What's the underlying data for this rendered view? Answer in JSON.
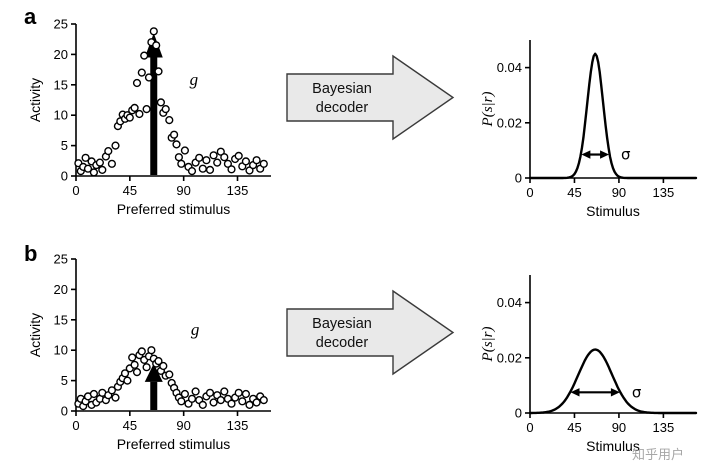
{
  "panel_labels": [
    "a",
    "b"
  ],
  "decoder": {
    "line1": "Bayesian",
    "line2": "decoder"
  },
  "watermark": "知乎用户",
  "colors": {
    "stroke": "#000000",
    "decoder_fill": "#e9e9e9",
    "decoder_stroke": "#3a3a3a",
    "watermark": "#a6a6a6"
  },
  "chart_data": [
    {
      "id": "tuning-a",
      "type": "scatter",
      "title": "",
      "xlabel": "Preferred stimulus",
      "ylabel": "Activity",
      "xlim": [
        0,
        163
      ],
      "ylim": [
        0,
        25
      ],
      "xticks": [
        0,
        45,
        90,
        135
      ],
      "yticks": [
        0,
        5,
        10,
        15,
        20,
        25
      ],
      "points": [
        [
          2,
          2.1
        ],
        [
          4,
          0.8
        ],
        [
          6,
          1.5
        ],
        [
          8,
          3.0
        ],
        [
          10,
          1.2
        ],
        [
          13,
          2.4
        ],
        [
          15,
          0.6
        ],
        [
          17,
          1.8
        ],
        [
          20,
          2.2
        ],
        [
          22,
          1.0
        ],
        [
          25,
          3.2
        ],
        [
          27,
          4.1
        ],
        [
          30,
          2.0
        ],
        [
          33,
          5.0
        ],
        [
          35,
          8.2
        ],
        [
          37,
          9.0
        ],
        [
          39,
          10.1
        ],
        [
          41,
          9.4
        ],
        [
          43,
          10.0
        ],
        [
          45,
          9.6
        ],
        [
          47,
          10.8
        ],
        [
          49,
          11.2
        ],
        [
          51,
          15.3
        ],
        [
          53,
          10.2
        ],
        [
          55,
          17.0
        ],
        [
          57,
          19.8
        ],
        [
          59,
          11.0
        ],
        [
          61,
          16.2
        ],
        [
          63,
          22.0
        ],
        [
          65,
          23.8
        ],
        [
          67,
          21.5
        ],
        [
          69,
          17.2
        ],
        [
          71,
          12.1
        ],
        [
          73,
          10.4
        ],
        [
          75,
          11.0
        ],
        [
          78,
          9.2
        ],
        [
          80,
          6.3
        ],
        [
          82,
          6.8
        ],
        [
          84,
          5.2
        ],
        [
          86,
          3.1
        ],
        [
          88,
          2.0
        ],
        [
          91,
          4.2
        ],
        [
          94,
          1.5
        ],
        [
          97,
          0.8
        ],
        [
          100,
          2.2
        ],
        [
          103,
          3.0
        ],
        [
          106,
          1.2
        ],
        [
          109,
          2.6
        ],
        [
          112,
          1.0
        ],
        [
          115,
          3.4
        ],
        [
          118,
          2.2
        ],
        [
          121,
          4.0
        ],
        [
          124,
          3.1
        ],
        [
          127,
          2.0
        ],
        [
          130,
          1.1
        ],
        [
          133,
          2.8
        ],
        [
          136,
          3.3
        ],
        [
          139,
          1.6
        ],
        [
          142,
          2.4
        ],
        [
          145,
          0.9
        ],
        [
          148,
          1.8
        ],
        [
          151,
          2.6
        ],
        [
          154,
          1.2
        ],
        [
          157,
          2.0
        ]
      ],
      "gain_arrow": {
        "x": 65,
        "shaft_top": 19.5,
        "tip": 23.5,
        "label": "g",
        "label_x": 95,
        "label_y": 15
      }
    },
    {
      "id": "posterior-a",
      "type": "line",
      "title": "",
      "xlabel": "Stimulus",
      "ylabel": "P(s|r)",
      "ylabel_italic": true,
      "xlim": [
        0,
        168
      ],
      "ylim": [
        0,
        0.05
      ],
      "xticks": [
        0,
        45,
        90,
        135
      ],
      "yticks": [
        0,
        0.02,
        0.04
      ],
      "ytick_labels": [
        "0",
        "0.02",
        "0.04"
      ],
      "gaussian": {
        "center": 66,
        "sigma": 8,
        "peak": 0.045
      },
      "sigma_arrow": {
        "x1": 52,
        "x2": 80,
        "y": 0.0085,
        "label": "σ"
      }
    },
    {
      "id": "tuning-b",
      "type": "scatter",
      "title": "",
      "xlabel": "Preferred stimulus",
      "ylabel": "Activity",
      "xlim": [
        0,
        163
      ],
      "ylim": [
        0,
        25
      ],
      "xticks": [
        0,
        45,
        90,
        135
      ],
      "yticks": [
        0,
        5,
        10,
        15,
        20,
        25
      ],
      "points": [
        [
          2,
          1.2
        ],
        [
          4,
          2.0
        ],
        [
          6,
          0.8
        ],
        [
          8,
          1.6
        ],
        [
          10,
          2.4
        ],
        [
          13,
          1.0
        ],
        [
          15,
          2.8
        ],
        [
          17,
          1.4
        ],
        [
          20,
          2.0
        ],
        [
          22,
          3.0
        ],
        [
          25,
          1.8
        ],
        [
          27,
          2.6
        ],
        [
          30,
          3.4
        ],
        [
          33,
          2.2
        ],
        [
          35,
          4.0
        ],
        [
          37,
          4.8
        ],
        [
          39,
          5.4
        ],
        [
          41,
          6.2
        ],
        [
          43,
          5.0
        ],
        [
          45,
          7.0
        ],
        [
          47,
          8.8
        ],
        [
          49,
          7.6
        ],
        [
          51,
          6.4
        ],
        [
          53,
          9.2
        ],
        [
          55,
          9.8
        ],
        [
          57,
          8.4
        ],
        [
          59,
          7.2
        ],
        [
          61,
          9.0
        ],
        [
          63,
          10.0
        ],
        [
          65,
          8.6
        ],
        [
          67,
          7.8
        ],
        [
          69,
          8.2
        ],
        [
          71,
          6.6
        ],
        [
          73,
          7.4
        ],
        [
          75,
          5.8
        ],
        [
          78,
          6.0
        ],
        [
          80,
          4.6
        ],
        [
          82,
          3.8
        ],
        [
          84,
          3.0
        ],
        [
          86,
          2.2
        ],
        [
          88,
          1.6
        ],
        [
          91,
          2.8
        ],
        [
          94,
          1.2
        ],
        [
          97,
          2.0
        ],
        [
          100,
          3.2
        ],
        [
          103,
          1.8
        ],
        [
          106,
          1.0
        ],
        [
          109,
          2.4
        ],
        [
          112,
          3.0
        ],
        [
          115,
          1.4
        ],
        [
          118,
          2.6
        ],
        [
          121,
          1.8
        ],
        [
          124,
          3.2
        ],
        [
          127,
          2.0
        ],
        [
          130,
          1.2
        ],
        [
          133,
          2.2
        ],
        [
          136,
          3.0
        ],
        [
          139,
          1.6
        ],
        [
          142,
          2.8
        ],
        [
          145,
          1.0
        ],
        [
          148,
          2.0
        ],
        [
          151,
          1.4
        ],
        [
          154,
          2.4
        ],
        [
          157,
          1.8
        ]
      ],
      "gain_arrow": {
        "x": 65,
        "shaft_top": 4.8,
        "tip": 7.8,
        "label": "g",
        "label_x": 96,
        "label_y": 12.5
      }
    },
    {
      "id": "posterior-b",
      "type": "line",
      "title": "",
      "xlabel": "Stimulus",
      "ylabel": "P(s|r)",
      "ylabel_italic": true,
      "xlim": [
        0,
        168
      ],
      "ylim": [
        0,
        0.05
      ],
      "xticks": [
        0,
        45,
        90,
        135
      ],
      "yticks": [
        0,
        0.02,
        0.04
      ],
      "ytick_labels": [
        "0",
        "0.02",
        "0.04"
      ],
      "gaussian": {
        "center": 66,
        "sigma": 17,
        "peak": 0.023
      },
      "sigma_arrow": {
        "x1": 41,
        "x2": 91,
        "y": 0.0075,
        "label": "σ"
      }
    }
  ]
}
